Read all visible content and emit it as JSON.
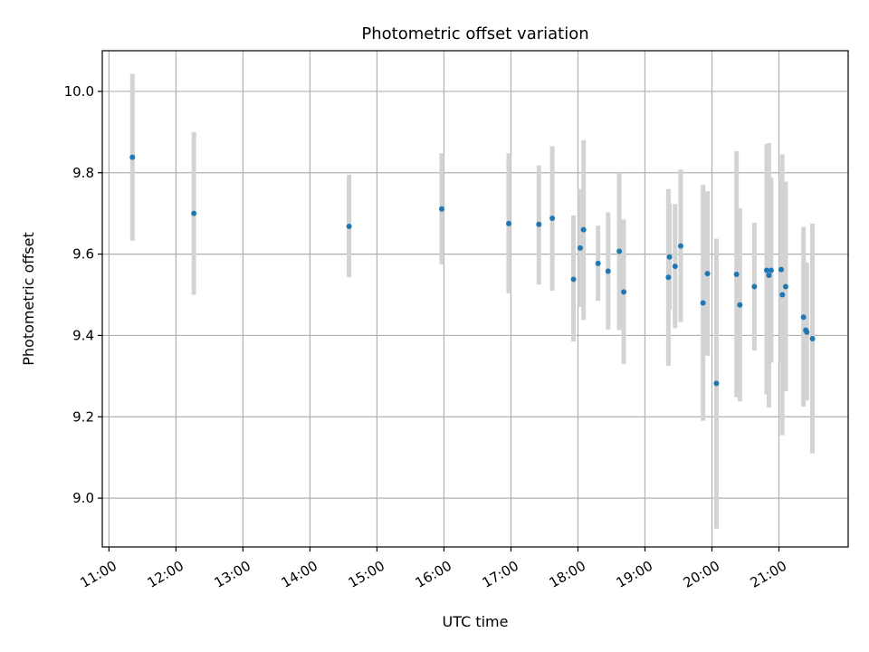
{
  "chart_data": {
    "type": "scatter",
    "title": "Photometric offset variation",
    "xlabel": "UTC time",
    "ylabel": "Photometric offset",
    "x_ticks": [
      "11:00",
      "12:00",
      "13:00",
      "14:00",
      "15:00",
      "16:00",
      "17:00",
      "18:00",
      "19:00",
      "20:00",
      "21:00"
    ],
    "y_ticks": [
      "9.0",
      "9.2",
      "9.4",
      "9.6",
      "9.8",
      "10.0"
    ],
    "xlim": [
      "10:54",
      "22:02"
    ],
    "ylim": [
      8.88,
      10.1
    ],
    "grid": true,
    "series": [
      {
        "marker_color": "#1f77b4",
        "errorbar_color": "#d3d3d3",
        "points": [
          {
            "t": "11:21",
            "y": 9.838,
            "lo": 9.633,
            "hi": 10.043
          },
          {
            "t": "12:16",
            "y": 9.7,
            "lo": 9.5,
            "hi": 9.9
          },
          {
            "t": "14:35",
            "y": 9.668,
            "lo": 9.543,
            "hi": 9.795
          },
          {
            "t": "15:58",
            "y": 9.711,
            "lo": 9.575,
            "hi": 9.848
          },
          {
            "t": "16:58",
            "y": 9.675,
            "lo": 9.503,
            "hi": 9.848
          },
          {
            "t": "17:25",
            "y": 9.673,
            "lo": 9.525,
            "hi": 9.818
          },
          {
            "t": "17:37",
            "y": 9.688,
            "lo": 9.51,
            "hi": 9.865
          },
          {
            "t": "17:56",
            "y": 9.538,
            "lo": 9.385,
            "hi": 9.695
          },
          {
            "t": "18:02",
            "y": 9.615,
            "lo": 9.47,
            "hi": 9.76
          },
          {
            "t": "18:05",
            "y": 9.66,
            "lo": 9.438,
            "hi": 9.88
          },
          {
            "t": "18:18",
            "y": 9.577,
            "lo": 9.485,
            "hi": 9.67
          },
          {
            "t": "18:27",
            "y": 9.558,
            "lo": 9.415,
            "hi": 9.703
          },
          {
            "t": "18:37",
            "y": 9.607,
            "lo": 9.413,
            "hi": 9.8
          },
          {
            "t": "18:41",
            "y": 9.507,
            "lo": 9.33,
            "hi": 9.685
          },
          {
            "t": "19:21",
            "y": 9.543,
            "lo": 9.325,
            "hi": 9.76
          },
          {
            "t": "19:22",
            "y": 9.593,
            "lo": 9.463,
            "hi": 9.725
          },
          {
            "t": "19:27",
            "y": 9.57,
            "lo": 9.418,
            "hi": 9.723
          },
          {
            "t": "19:32",
            "y": 9.62,
            "lo": 9.433,
            "hi": 9.808
          },
          {
            "t": "19:52",
            "y": 9.48,
            "lo": 9.19,
            "hi": 9.77
          },
          {
            "t": "19:56",
            "y": 9.552,
            "lo": 9.35,
            "hi": 9.755
          },
          {
            "t": "20:04",
            "y": 9.282,
            "lo": 8.925,
            "hi": 9.638
          },
          {
            "t": "20:22",
            "y": 9.55,
            "lo": 9.248,
            "hi": 9.853
          },
          {
            "t": "20:25",
            "y": 9.475,
            "lo": 9.238,
            "hi": 9.713
          },
          {
            "t": "20:38",
            "y": 9.52,
            "lo": 9.363,
            "hi": 9.677
          },
          {
            "t": "20:49",
            "y": 9.56,
            "lo": 9.255,
            "hi": 9.87
          },
          {
            "t": "20:51",
            "y": 9.548,
            "lo": 9.223,
            "hi": 9.873
          },
          {
            "t": "20:53",
            "y": 9.56,
            "lo": 9.333,
            "hi": 9.788
          },
          {
            "t": "21:02",
            "y": 9.562,
            "lo": 9.335,
            "hi": 9.79
          },
          {
            "t": "21:03",
            "y": 9.5,
            "lo": 9.155,
            "hi": 9.845
          },
          {
            "t": "21:06",
            "y": 9.52,
            "lo": 9.263,
            "hi": 9.778
          },
          {
            "t": "21:22",
            "y": 9.445,
            "lo": 9.225,
            "hi": 9.667
          },
          {
            "t": "21:24",
            "y": 9.413,
            "lo": 9.245,
            "hi": 9.58
          },
          {
            "t": "21:25",
            "y": 9.408,
            "lo": 9.24,
            "hi": 9.577
          },
          {
            "t": "21:30",
            "y": 9.392,
            "lo": 9.11,
            "hi": 9.675
          }
        ]
      }
    ]
  }
}
